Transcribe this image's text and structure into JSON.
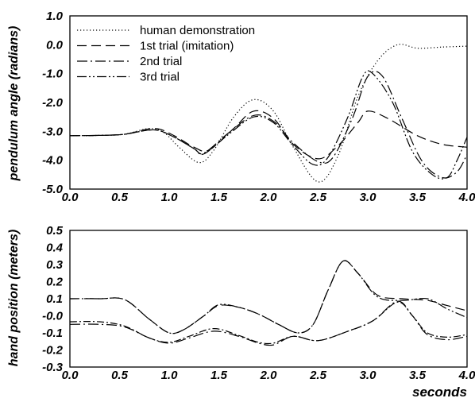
{
  "chart_data": [
    {
      "type": "line",
      "ylabel": "pendulum angle (radians)",
      "xlabel": "",
      "xlim": [
        0.0,
        4.0
      ],
      "ylim": [
        -5.0,
        1.0
      ],
      "x_ticks": [
        "0.0",
        "0.5",
        "1.0",
        "1.5",
        "2.0",
        "2.5",
        "3.0",
        "3.5",
        "4.0"
      ],
      "y_ticks": [
        "1.0",
        "0.0",
        "-1.0",
        "-2.0",
        "-3.0",
        "-4.0",
        "-5.0"
      ],
      "legend_position": "top-left",
      "series": [
        {
          "name": "human demonstration",
          "style": "dotted",
          "points": [
            [
              0.0,
              -3.15
            ],
            [
              0.3,
              -3.14
            ],
            [
              0.55,
              -3.1
            ],
            [
              0.8,
              -2.9
            ],
            [
              0.95,
              -3.05
            ],
            [
              1.1,
              -3.55
            ],
            [
              1.3,
              -4.08
            ],
            [
              1.45,
              -3.65
            ],
            [
              1.65,
              -2.5
            ],
            [
              1.85,
              -1.9
            ],
            [
              2.05,
              -2.3
            ],
            [
              2.25,
              -3.55
            ],
            [
              2.5,
              -4.75
            ],
            [
              2.7,
              -3.85
            ],
            [
              2.9,
              -1.8
            ],
            [
              3.1,
              -0.55
            ],
            [
              3.3,
              0.0
            ],
            [
              3.5,
              -0.12
            ],
            [
              3.75,
              -0.08
            ],
            [
              4.0,
              -0.05
            ]
          ]
        },
        {
          "name": "1st trial (imitation)",
          "style": "dashed",
          "points": [
            [
              0.0,
              -3.15
            ],
            [
              0.3,
              -3.14
            ],
            [
              0.55,
              -3.1
            ],
            [
              0.85,
              -2.9
            ],
            [
              1.05,
              -3.15
            ],
            [
              1.25,
              -3.55
            ],
            [
              1.4,
              -3.65
            ],
            [
              1.65,
              -2.9
            ],
            [
              1.85,
              -2.3
            ],
            [
              2.05,
              -2.55
            ],
            [
              2.25,
              -3.45
            ],
            [
              2.5,
              -3.95
            ],
            [
              2.7,
              -3.5
            ],
            [
              2.9,
              -2.7
            ],
            [
              3.0,
              -2.3
            ],
            [
              3.2,
              -2.55
            ],
            [
              3.5,
              -3.15
            ],
            [
              3.75,
              -3.45
            ],
            [
              4.0,
              -3.55
            ]
          ]
        },
        {
          "name": "2nd trial",
          "style": "dashdot",
          "points": [
            [
              0.0,
              -3.15
            ],
            [
              0.3,
              -3.14
            ],
            [
              0.55,
              -3.1
            ],
            [
              0.85,
              -2.95
            ],
            [
              1.05,
              -3.2
            ],
            [
              1.25,
              -3.6
            ],
            [
              1.35,
              -3.75
            ],
            [
              1.6,
              -3.05
            ],
            [
              1.85,
              -2.45
            ],
            [
              2.05,
              -2.65
            ],
            [
              2.25,
              -3.4
            ],
            [
              2.5,
              -4.05
            ],
            [
              2.65,
              -3.9
            ],
            [
              2.85,
              -2.5
            ],
            [
              3.0,
              -1.1
            ],
            [
              3.15,
              -1.1
            ],
            [
              3.35,
              -2.6
            ],
            [
              3.55,
              -4.05
            ],
            [
              3.75,
              -4.6
            ],
            [
              3.9,
              -4.4
            ],
            [
              4.0,
              -3.8
            ]
          ]
        },
        {
          "name": "3rd trial",
          "style": "dashdotdot",
          "points": [
            [
              0.0,
              -3.15
            ],
            [
              0.3,
              -3.14
            ],
            [
              0.55,
              -3.1
            ],
            [
              0.85,
              -2.95
            ],
            [
              1.05,
              -3.2
            ],
            [
              1.25,
              -3.6
            ],
            [
              1.35,
              -3.78
            ],
            [
              1.6,
              -3.1
            ],
            [
              1.85,
              -2.5
            ],
            [
              2.05,
              -2.7
            ],
            [
              2.25,
              -3.5
            ],
            [
              2.45,
              -4.15
            ],
            [
              2.6,
              -3.9
            ],
            [
              2.8,
              -2.5
            ],
            [
              2.95,
              -1.1
            ],
            [
              3.05,
              -1.0
            ],
            [
              3.25,
              -2.0
            ],
            [
              3.45,
              -3.7
            ],
            [
              3.65,
              -4.5
            ],
            [
              3.8,
              -4.6
            ],
            [
              3.9,
              -4.0
            ],
            [
              4.0,
              -3.2
            ]
          ]
        }
      ]
    },
    {
      "type": "line",
      "ylabel": "hand position (meters)",
      "xlabel": "seconds",
      "xlim": [
        0.0,
        4.0
      ],
      "ylim": [
        -0.3,
        0.5
      ],
      "x_ticks": [
        "0.0",
        "0.5",
        "1.0",
        "1.5",
        "2.0",
        "2.5",
        "3.0",
        "3.5",
        "4.0"
      ],
      "y_ticks": [
        "0.5",
        "0.4",
        "0.3",
        "0.2",
        "0.1",
        "-0.0",
        "-0.1",
        "-0.2",
        "-0.3"
      ],
      "series": [
        {
          "name": "",
          "style": "dashed",
          "points": [
            [
              0.0,
              0.1
            ],
            [
              0.3,
              0.1
            ],
            [
              0.55,
              0.095
            ],
            [
              0.8,
              -0.02
            ],
            [
              1.0,
              -0.1
            ],
            [
              1.15,
              -0.08
            ],
            [
              1.35,
              0.0
            ],
            [
              1.5,
              0.06
            ],
            [
              1.7,
              0.05
            ],
            [
              1.9,
              0.01
            ],
            [
              2.1,
              -0.05
            ],
            [
              2.3,
              -0.1
            ],
            [
              2.45,
              -0.05
            ],
            [
              2.6,
              0.15
            ],
            [
              2.75,
              0.32
            ],
            [
              2.9,
              0.25
            ],
            [
              3.1,
              0.12
            ],
            [
              3.35,
              0.1
            ],
            [
              3.6,
              0.09
            ],
            [
              3.8,
              0.06
            ],
            [
              4.0,
              0.03
            ]
          ]
        },
        {
          "name": "",
          "style": "dashdotdot",
          "points": [
            [
              0.0,
              0.1
            ],
            [
              0.3,
              0.1
            ],
            [
              0.55,
              0.095
            ],
            [
              0.8,
              -0.02
            ],
            [
              1.0,
              -0.1
            ],
            [
              1.15,
              -0.08
            ],
            [
              1.35,
              0.0
            ],
            [
              1.5,
              0.065
            ],
            [
              1.7,
              0.05
            ],
            [
              1.9,
              0.01
            ],
            [
              2.1,
              -0.05
            ],
            [
              2.3,
              -0.1
            ],
            [
              2.45,
              -0.05
            ],
            [
              2.6,
              0.15
            ],
            [
              2.75,
              0.32
            ],
            [
              2.9,
              0.25
            ],
            [
              3.1,
              0.11
            ],
            [
              3.35,
              0.09
            ],
            [
              3.6,
              0.1
            ],
            [
              3.8,
              0.04
            ],
            [
              4.0,
              -0.01
            ]
          ]
        },
        {
          "name": "",
          "style": "dashdot",
          "points": [
            [
              0.0,
              -0.05
            ],
            [
              0.3,
              -0.05
            ],
            [
              0.55,
              -0.065
            ],
            [
              0.8,
              -0.13
            ],
            [
              1.0,
              -0.16
            ],
            [
              1.2,
              -0.13
            ],
            [
              1.45,
              -0.09
            ],
            [
              1.7,
              -0.12
            ],
            [
              1.9,
              -0.16
            ],
            [
              2.05,
              -0.17
            ],
            [
              2.25,
              -0.12
            ],
            [
              2.5,
              -0.145
            ],
            [
              2.8,
              -0.09
            ],
            [
              3.05,
              -0.03
            ],
            [
              3.3,
              0.085
            ],
            [
              3.45,
              0.0
            ],
            [
              3.6,
              -0.11
            ],
            [
              3.8,
              -0.14
            ],
            [
              4.0,
              -0.12
            ]
          ]
        },
        {
          "name": "",
          "style": "dashdot2",
          "points": [
            [
              0.0,
              -0.035
            ],
            [
              0.3,
              -0.035
            ],
            [
              0.55,
              -0.06
            ],
            [
              0.8,
              -0.13
            ],
            [
              1.0,
              -0.155
            ],
            [
              1.2,
              -0.12
            ],
            [
              1.45,
              -0.075
            ],
            [
              1.7,
              -0.115
            ],
            [
              1.9,
              -0.155
            ],
            [
              2.05,
              -0.16
            ],
            [
              2.25,
              -0.12
            ],
            [
              2.5,
              -0.145
            ],
            [
              2.8,
              -0.09
            ],
            [
              3.05,
              -0.03
            ],
            [
              3.3,
              0.08
            ],
            [
              3.45,
              0.0
            ],
            [
              3.6,
              -0.1
            ],
            [
              3.8,
              -0.125
            ],
            [
              4.0,
              -0.11
            ]
          ]
        }
      ]
    }
  ]
}
